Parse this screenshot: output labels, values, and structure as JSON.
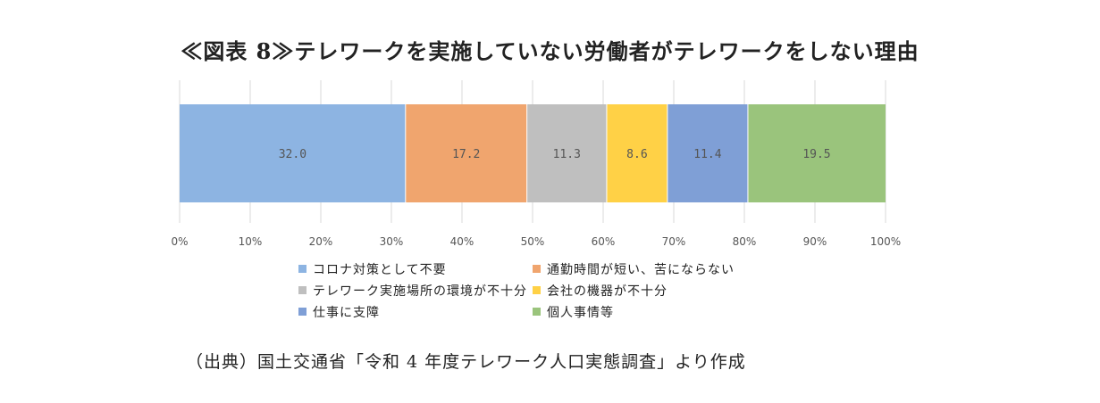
{
  "title": "≪図表 8≫テレワークを実施していない労働者がテレワークをしない理由",
  "chart_data": {
    "type": "bar",
    "orientation": "horizontal-stacked-100",
    "series": [
      {
        "name": "コロナ対策として不要",
        "value": 32.0,
        "label": "32.0",
        "color": "#8db4e2"
      },
      {
        "name": "通勤時間が短い、苦にならない",
        "value": 17.2,
        "label": "17.2",
        "color": "#f0a56e"
      },
      {
        "name": "テレワーク実施場所の環境が不十分",
        "value": 11.3,
        "label": "11.3",
        "color": "#bfbfbf"
      },
      {
        "name": "会社の機器が不十分",
        "value": 8.6,
        "label": "8.6",
        "color": "#ffd146"
      },
      {
        "name": "仕事に支障",
        "value": 11.4,
        "label": "11.4",
        "color": "#7f9fd6"
      },
      {
        "name": "個人事情等",
        "value": 19.5,
        "label": "19.5",
        "color": "#9ac47c"
      }
    ],
    "xlim": [
      0,
      100
    ],
    "xticks": [
      "0%",
      "10%",
      "20%",
      "30%",
      "40%",
      "50%",
      "60%",
      "70%",
      "80%",
      "90%",
      "100%"
    ],
    "grid": true,
    "legend_position": "bottom"
  },
  "source": "（出典）国土交通省「令和 4 年度テレワーク人口実態調査」より作成"
}
